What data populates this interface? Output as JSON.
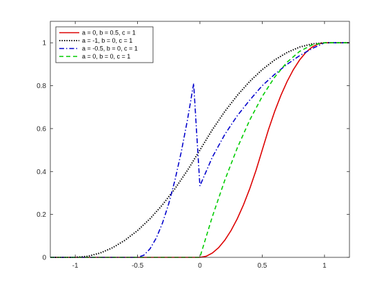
{
  "chart_data": {
    "type": "line",
    "title": "",
    "xlabel": "",
    "ylabel": "",
    "xlim": [
      -1.2,
      1.2
    ],
    "ylim": [
      0,
      1.1
    ],
    "xticks": [
      -1,
      -0.5,
      0,
      0.5,
      1
    ],
    "xtick_labels": [
      "-1",
      "-0.5",
      "0",
      "0.5",
      "1"
    ],
    "yticks": [
      0,
      0.2,
      0.4,
      0.6,
      0.8,
      1
    ],
    "ytick_labels": [
      "0",
      "0.2",
      "0.4",
      "0.6",
      "0.8",
      "1"
    ],
    "grid": false,
    "legend_position": "top-left",
    "series": [
      {
        "name": "a = 0, b = 0.5, c = 1",
        "color": "#dd0000",
        "dash": "solid",
        "x": [
          -1.2,
          0,
          0.05,
          0.1,
          0.15,
          0.2,
          0.25,
          0.3,
          0.35,
          0.4,
          0.45,
          0.5,
          0.55,
          0.6,
          0.65,
          0.7,
          0.75,
          0.8,
          0.85,
          0.9,
          0.95,
          1,
          1.2
        ],
        "y": [
          0,
          0,
          0.005,
          0.02,
          0.045,
          0.08,
          0.125,
          0.18,
          0.245,
          0.32,
          0.405,
          0.5,
          0.595,
          0.68,
          0.755,
          0.82,
          0.875,
          0.92,
          0.955,
          0.98,
          0.995,
          1,
          1
        ]
      },
      {
        "name": "a = -1, b = 0, c = 1",
        "color": "#000000",
        "dash": "dotted",
        "x": [
          -1.2,
          -1,
          -0.9,
          -0.8,
          -0.7,
          -0.6,
          -0.5,
          -0.4,
          -0.3,
          -0.2,
          -0.1,
          0,
          0.1,
          0.2,
          0.3,
          0.4,
          0.5,
          0.6,
          0.7,
          0.8,
          0.9,
          1,
          1.2
        ],
        "y": [
          0,
          0,
          0.005,
          0.02,
          0.045,
          0.08,
          0.125,
          0.18,
          0.245,
          0.32,
          0.405,
          0.5,
          0.595,
          0.68,
          0.755,
          0.82,
          0.875,
          0.92,
          0.955,
          0.98,
          0.995,
          1,
          1
        ]
      },
      {
        "name": "a = -0.5, b = 0, c = 1",
        "color": "#0000cc",
        "dash": "dashdot",
        "x": [
          -1.2,
          -0.5,
          -0.45,
          -0.4,
          -0.35,
          -0.3,
          -0.25,
          -0.2,
          -0.15,
          -0.1,
          -0.05,
          0,
          0.1,
          0.2,
          0.3,
          0.4,
          0.5,
          0.6,
          0.7,
          0.8,
          0.9,
          1,
          1.2
        ],
        "y": [
          0,
          0,
          0.01,
          0.04,
          0.09,
          0.16,
          0.25,
          0.36,
          0.49,
          0.64,
          0.81,
          0.333,
          0.467,
          0.573,
          0.66,
          0.733,
          0.8,
          0.853,
          0.9,
          0.94,
          0.973,
          1,
          1
        ]
      },
      {
        "name": "a = 0, b = 0, c = 1",
        "color": "#00cc00",
        "dash": "dashed",
        "x": [
          -1.2,
          0,
          0.1,
          0.2,
          0.3,
          0.4,
          0.5,
          0.6,
          0.7,
          0.8,
          0.9,
          1,
          1.2
        ],
        "y": [
          0,
          0,
          0.19,
          0.36,
          0.51,
          0.64,
          0.75,
          0.84,
          0.91,
          0.96,
          0.99,
          1,
          1
        ]
      }
    ]
  }
}
